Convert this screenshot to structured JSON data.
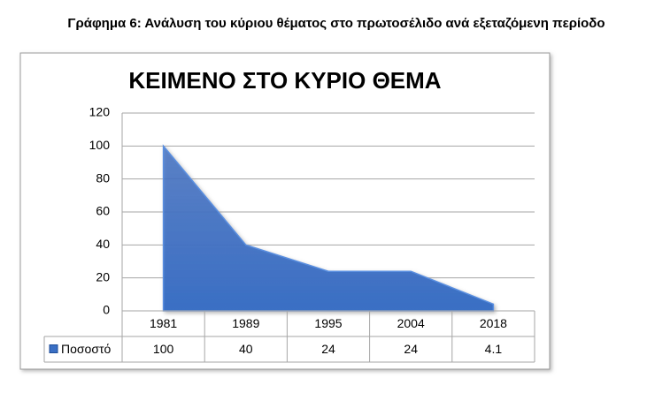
{
  "caption": "Γράφημα 6: Ανάλυση του κύριου θέματος στο πρωτοσέλιδο ανά εξεταζόμενη περίοδο",
  "chart_data": {
    "type": "area",
    "title": "ΚΕΙΜΕΝΟ ΣΤΟ ΚΥΡΙΟ ΘΕΜΑ",
    "categories": [
      "1981",
      "1989",
      "1995",
      "2004",
      "2018"
    ],
    "series": [
      {
        "name": "Ποσοστό",
        "color": "#3a6fc4",
        "values": [
          100,
          40,
          24,
          24,
          4.1
        ]
      }
    ],
    "ylim": [
      0,
      120
    ],
    "yticks": [
      0,
      20,
      40,
      60,
      80,
      100,
      120
    ],
    "grid": true,
    "data_table": true
  }
}
